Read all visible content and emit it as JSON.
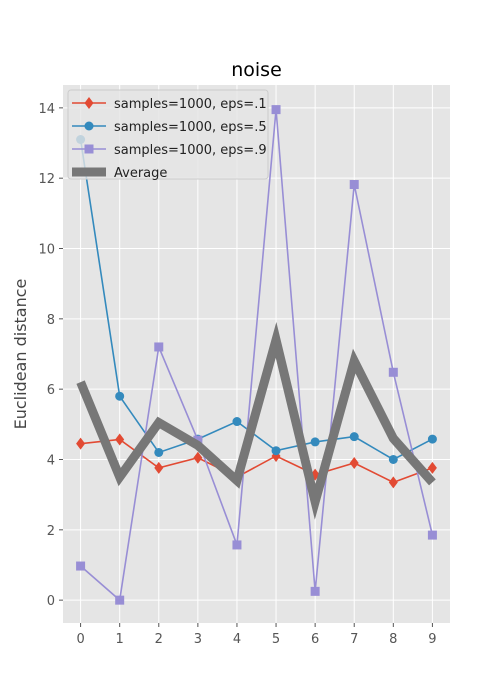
{
  "chart_data": {
    "type": "line",
    "title": "noise",
    "xlabel": "",
    "ylabel": "Euclidean distance",
    "x": [
      0,
      1,
      2,
      3,
      4,
      5,
      6,
      7,
      8,
      9
    ],
    "x_ticks": [
      "0",
      "1",
      "2",
      "3",
      "4",
      "5",
      "6",
      "7",
      "8",
      "9"
    ],
    "y_ticks": [
      "0",
      "2",
      "4",
      "6",
      "8",
      "10",
      "12",
      "14"
    ],
    "xlim": [
      -0.45,
      9.45
    ],
    "ylim": [
      -0.65,
      14.65
    ],
    "grid": true,
    "legend_position": "top-left",
    "series": [
      {
        "name": "samples=1000, eps=.1",
        "values": [
          4.45,
          4.57,
          3.76,
          4.05,
          3.5,
          4.1,
          3.57,
          3.9,
          3.35,
          3.76
        ],
        "color": "#E24A33",
        "marker": "diamond"
      },
      {
        "name": "samples=1000, eps=.5",
        "values": [
          13.1,
          5.8,
          4.2,
          4.58,
          5.08,
          4.25,
          4.5,
          4.65,
          4.0,
          4.58
        ],
        "color": "#348ABD",
        "marker": "circle"
      },
      {
        "name": "samples=1000, eps=.9",
        "values": [
          0.97,
          0.0,
          7.2,
          4.55,
          1.57,
          13.95,
          0.25,
          11.82,
          6.48,
          1.85
        ],
        "color": "#988ED5",
        "marker": "square"
      },
      {
        "name": "Average",
        "values": [
          6.2,
          3.5,
          5.05,
          4.4,
          3.4,
          7.4,
          2.8,
          6.8,
          4.6,
          3.35
        ],
        "color": "#777777",
        "marker": "none"
      }
    ]
  }
}
